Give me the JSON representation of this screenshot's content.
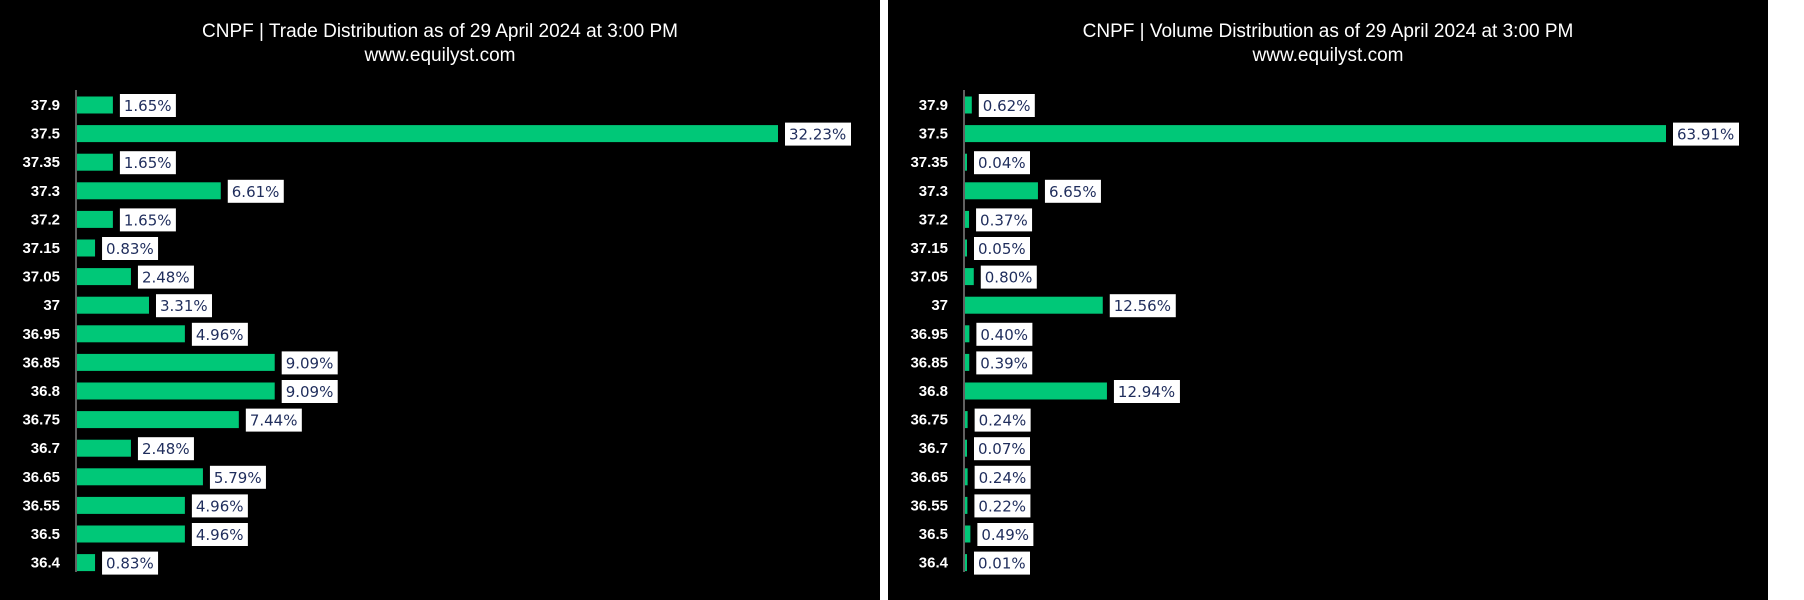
{
  "chart_data": [
    {
      "type": "bar",
      "orientation": "horizontal",
      "title": "CNPF | Trade Distribution as of 29 April 2024 at 3:00 PM",
      "subtitle": "www.equilyst.com",
      "categories": [
        "37.9",
        "37.5",
        "37.35",
        "37.3",
        "37.2",
        "37.15",
        "37.05",
        "37",
        "36.95",
        "36.85",
        "36.8",
        "36.75",
        "36.7",
        "36.65",
        "36.55",
        "36.5",
        "36.4"
      ],
      "values": [
        1.65,
        32.23,
        1.65,
        6.61,
        1.65,
        0.83,
        2.48,
        3.31,
        4.96,
        9.09,
        9.09,
        7.44,
        2.48,
        5.79,
        4.96,
        4.96,
        0.83
      ],
      "labels": [
        "1.65%",
        "32.23%",
        "1.65%",
        "6.61%",
        "1.65%",
        "0.83%",
        "2.48%",
        "3.31%",
        "4.96%",
        "9.09%",
        "9.09%",
        "7.44%",
        "2.48%",
        "5.79%",
        "4.96%",
        "4.96%",
        "0.83%"
      ],
      "xlim": [
        0,
        32.23
      ],
      "grid": false,
      "bar_color": "#00c878",
      "label_bg": "#ffffff",
      "label_color": "#1f2d5c"
    },
    {
      "type": "bar",
      "orientation": "horizontal",
      "title": "CNPF | Volume Distribution as of 29 April 2024 at 3:00 PM",
      "subtitle": "www.equilyst.com",
      "categories": [
        "37.9",
        "37.5",
        "37.35",
        "37.3",
        "37.2",
        "37.15",
        "37.05",
        "37",
        "36.95",
        "36.85",
        "36.8",
        "36.75",
        "36.7",
        "36.65",
        "36.55",
        "36.5",
        "36.4"
      ],
      "values": [
        0.62,
        63.91,
        0.04,
        6.65,
        0.37,
        0.05,
        0.8,
        12.56,
        0.4,
        0.39,
        12.94,
        0.24,
        0.07,
        0.24,
        0.22,
        0.49,
        0.01
      ],
      "labels": [
        "0.62%",
        "63.91%",
        "0.04%",
        "6.65%",
        "0.37%",
        "0.05%",
        "0.80%",
        "12.56%",
        "0.40%",
        "0.39%",
        "12.94%",
        "0.24%",
        "0.07%",
        "0.24%",
        "0.22%",
        "0.49%",
        "0.01%"
      ],
      "xlim": [
        0,
        63.91
      ],
      "grid": false,
      "bar_color": "#00c878",
      "label_bg": "#ffffff",
      "label_color": "#1f2d5c"
    }
  ]
}
